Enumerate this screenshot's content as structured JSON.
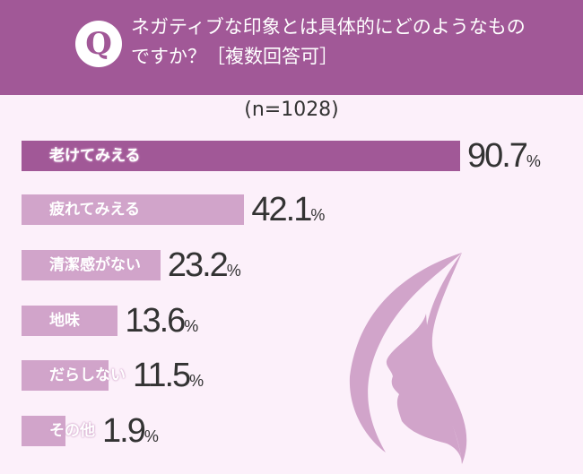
{
  "header": {
    "q_icon": "Q",
    "question": "ネガティブな印象とは具体的にどのようなものですか？［複数回答可］"
  },
  "chart_data": {
    "type": "bar",
    "orientation": "horizontal",
    "sample": "(n=1028)",
    "unit": "%",
    "categories": [
      "老けてみえる",
      "疲れてみえる",
      "清潔感がない",
      "地味",
      "だらしない",
      "その他"
    ],
    "values": [
      90.7,
      42.1,
      23.2,
      13.6,
      11.5,
      1.9
    ],
    "value_labels": [
      "90.7",
      "42.1",
      "23.2",
      "13.6",
      "11.5",
      "1.9"
    ],
    "colors": {
      "highlight": "#a15897",
      "default": "#d1a4ca",
      "background": "#fcf0fa"
    }
  }
}
